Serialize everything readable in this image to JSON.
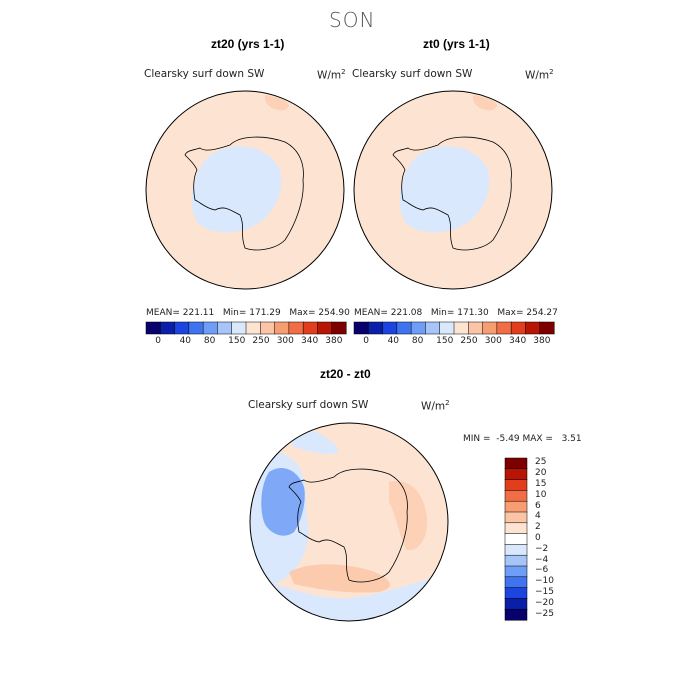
{
  "season": "SON",
  "panels": [
    {
      "title": "zt20 (yrs 1-1)",
      "variable": "Clearsky surf down SW",
      "units": "W/m",
      "units_sup": "2",
      "stats": {
        "mean_label": "MEAN=",
        "mean": "221.11",
        "min_label": "Min=",
        "min": "171.29",
        "max_label": "Max=",
        "max": "254.90"
      },
      "colorbar_ticks": [
        "0",
        "40",
        "80",
        "150",
        "250",
        "300",
        "340",
        "380"
      ]
    },
    {
      "title": "zt0 (yrs 1-1)",
      "variable": "Clearsky surf down SW",
      "units": "W/m",
      "units_sup": "2",
      "stats": {
        "mean_label": "MEAN=",
        "mean": "221.08",
        "min_label": "Min=",
        "min": "171.30",
        "max_label": "Max=",
        "max": "254.27"
      },
      "colorbar_ticks": [
        "0",
        "40",
        "80",
        "150",
        "250",
        "300",
        "340",
        "380"
      ]
    }
  ],
  "diff": {
    "title": "zt20 - zt0",
    "variable": "Clearsky surf down SW",
    "units": "W/m",
    "units_sup": "2",
    "min_label": "MIN =",
    "min": "-5.49",
    "max_label": "MAX =",
    "max": "3.51",
    "colorbar_labels": [
      "25",
      "20",
      "15",
      "10",
      "6",
      "4",
      "2",
      "0",
      "−2",
      "−4",
      "−6",
      "−10",
      "−15",
      "−20",
      "−25"
    ]
  },
  "colors": {
    "abs_scale": [
      "#08006b",
      "#0a1fa8",
      "#1c45e0",
      "#3f74f0",
      "#6f9ef6",
      "#a6c6fa",
      "#d9e8fd",
      "#fde4d2",
      "#fbc4a4",
      "#f79d72",
      "#f26d45",
      "#e23d1d",
      "#b81505",
      "#7d0000"
    ],
    "diff_scale": [
      "#7d0000",
      "#b81505",
      "#e23d1d",
      "#f26d45",
      "#f79d72",
      "#fbc4a4",
      "#fde4d2",
      "#ffffff",
      "#d9e8fd",
      "#a6c6fa",
      "#6f9ef6",
      "#3f74f0",
      "#1c45e0",
      "#0a1fa8",
      "#08006b"
    ],
    "ocean_field": "#fde4d2",
    "ice_field": "#d9e8fd"
  }
}
